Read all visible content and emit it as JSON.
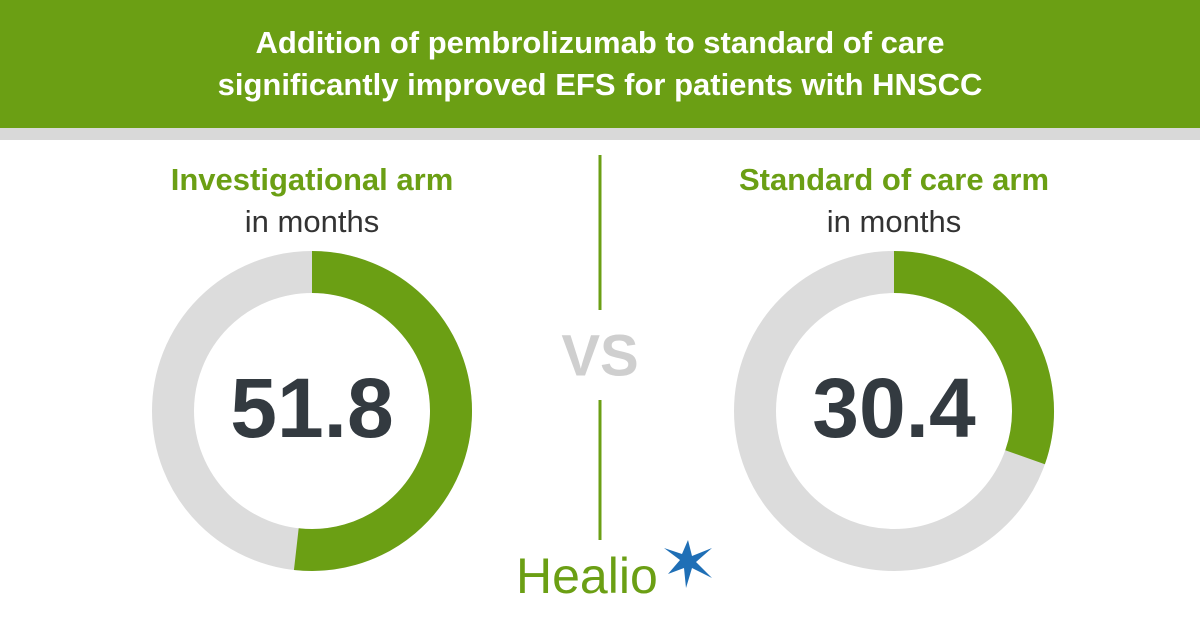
{
  "header": {
    "title": "Addition of pembrolizumab to standard of care significantly improved EFS for patients with HNSCC"
  },
  "divider_label": "VS",
  "logo": "Healio",
  "chart_data": [
    {
      "type": "donut",
      "title": "Investigational arm",
      "subtitle": "in months",
      "values": [
        51.8
      ],
      "color": "#6b9f14",
      "track_color": "#dcdcdc",
      "ylim": [
        0,
        100
      ]
    },
    {
      "type": "donut",
      "title": "Standard of care arm",
      "subtitle": "in months",
      "values": [
        30.4
      ],
      "color": "#6b9f14",
      "track_color": "#dcdcdc",
      "ylim": [
        0,
        100
      ]
    }
  ]
}
